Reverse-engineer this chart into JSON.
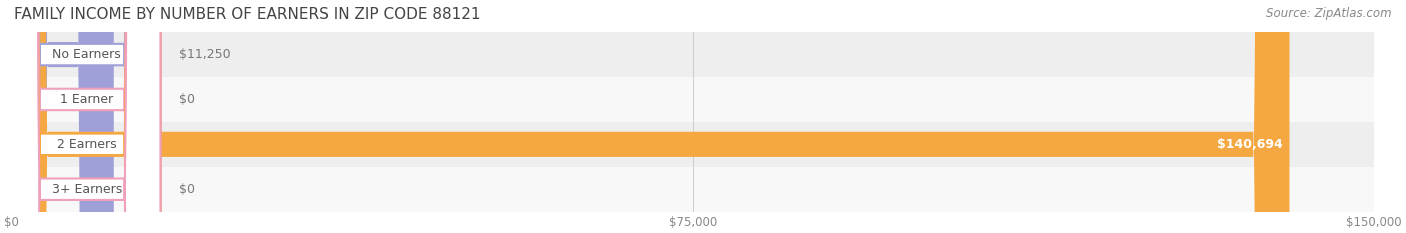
{
  "title": "FAMILY INCOME BY NUMBER OF EARNERS IN ZIP CODE 88121",
  "source": "Source: ZipAtlas.com",
  "categories": [
    "No Earners",
    "1 Earner",
    "2 Earners",
    "3+ Earners"
  ],
  "values": [
    11250,
    0,
    140694,
    0
  ],
  "bar_colors": [
    "#a0a0d8",
    "#f0a0b8",
    "#f5a842",
    "#f0a0b8"
  ],
  "label_colors": [
    "#a0a0d8",
    "#f0a0b8",
    "#f5a842",
    "#f0a0b8"
  ],
  "row_bg_colors": [
    "#f0f0f0",
    "#f8f8f8",
    "#f0f0f0",
    "#f8f8f8"
  ],
  "xlim": [
    0,
    150000
  ],
  "xticks": [
    0,
    75000,
    150000
  ],
  "xtick_labels": [
    "$0",
    "$75,000",
    "$150,000"
  ],
  "value_labels": [
    "$11,250",
    "$0",
    "$140,694",
    "$0"
  ],
  "value_label_inside": [
    false,
    false,
    true,
    false
  ],
  "background_color": "#ffffff",
  "title_fontsize": 11,
  "bar_height": 0.55,
  "label_fontsize": 9,
  "source_fontsize": 8.5
}
